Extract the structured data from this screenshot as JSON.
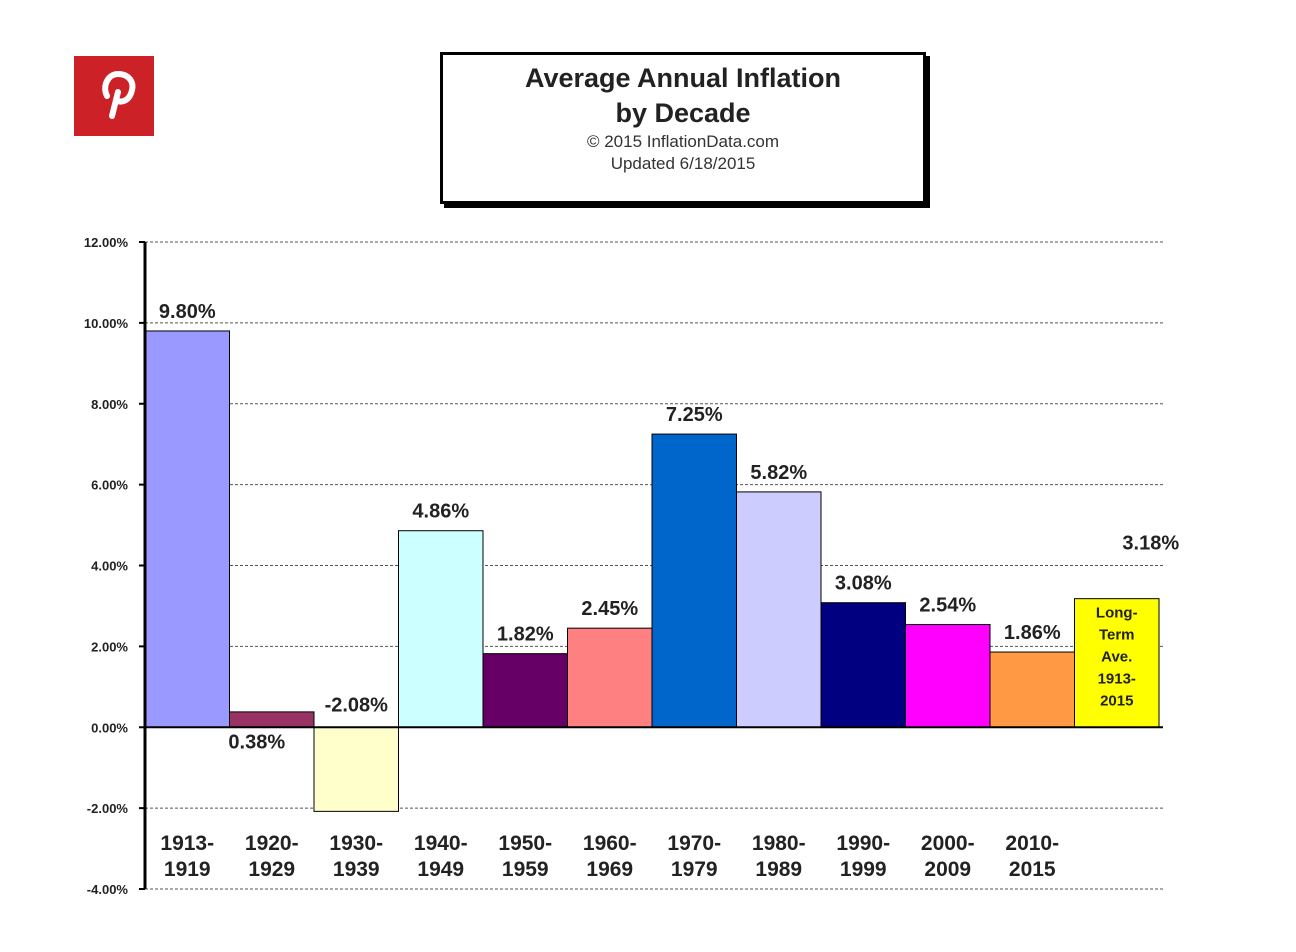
{
  "brand": {
    "icon": "pinterest-icon",
    "color": "#cc2127"
  },
  "title": {
    "line1": "Average Annual Inflation",
    "line2": "by Decade",
    "copyright": "© 2015  InflationData.com",
    "updated": "Updated   6/18/2015"
  },
  "chart_data": {
    "type": "bar",
    "title": "Average Annual Inflation by Decade",
    "xlabel": "",
    "ylabel": "",
    "ylim": [
      -4,
      12
    ],
    "yticks": [
      {
        "value": 12,
        "label": "12.00%"
      },
      {
        "value": 10,
        "label": "10.00%"
      },
      {
        "value": 8,
        "label": "8.00%"
      },
      {
        "value": 6,
        "label": "6.00%"
      },
      {
        "value": 4,
        "label": "4.00%"
      },
      {
        "value": 2,
        "label": "2.00%"
      },
      {
        "value": 0,
        "label": "0.00%"
      },
      {
        "value": -2,
        "label": "-2.00%"
      },
      {
        "value": -4,
        "label": "-4.00%"
      }
    ],
    "grid": true,
    "bars": [
      {
        "category": [
          "1913-",
          "1919"
        ],
        "value": 9.8,
        "label": "9.80%",
        "color": "#9999ff"
      },
      {
        "category": [
          "1920-",
          "1929"
        ],
        "value": 0.38,
        "label": "0.38%",
        "color": "#993366"
      },
      {
        "category": [
          "1930-",
          "1939"
        ],
        "value": -2.08,
        "label": "-2.08%",
        "color": "#ffffcc"
      },
      {
        "category": [
          "1940-",
          "1949"
        ],
        "value": 4.86,
        "label": "4.86%",
        "color": "#ccffff"
      },
      {
        "category": [
          "1950-",
          "1959"
        ],
        "value": 1.82,
        "label": "1.82%",
        "color": "#660066"
      },
      {
        "category": [
          "1960-",
          "1969"
        ],
        "value": 2.45,
        "label": "2.45%",
        "color": "#ff8080"
      },
      {
        "category": [
          "1970-",
          "1979"
        ],
        "value": 7.25,
        "label": "7.25%",
        "color": "#0066cc"
      },
      {
        "category": [
          "1980-",
          "1989"
        ],
        "value": 5.82,
        "label": "5.82%",
        "color": "#ccccff"
      },
      {
        "category": [
          "1990-",
          "1999"
        ],
        "value": 3.08,
        "label": "3.08%",
        "color": "#000080"
      },
      {
        "category": [
          "2000-",
          "2009"
        ],
        "value": 2.54,
        "label": "2.54%",
        "color": "#ff00ff"
      },
      {
        "category": [
          "2010-",
          "2015"
        ],
        "value": 1.86,
        "label": "1.86%",
        "color": "#ff9944"
      },
      {
        "category": [],
        "value": 3.18,
        "label": "3.18%",
        "color": "#ffff00",
        "note": [
          "Long-",
          "Term",
          "Ave.",
          "1913-",
          "2015"
        ]
      }
    ]
  }
}
